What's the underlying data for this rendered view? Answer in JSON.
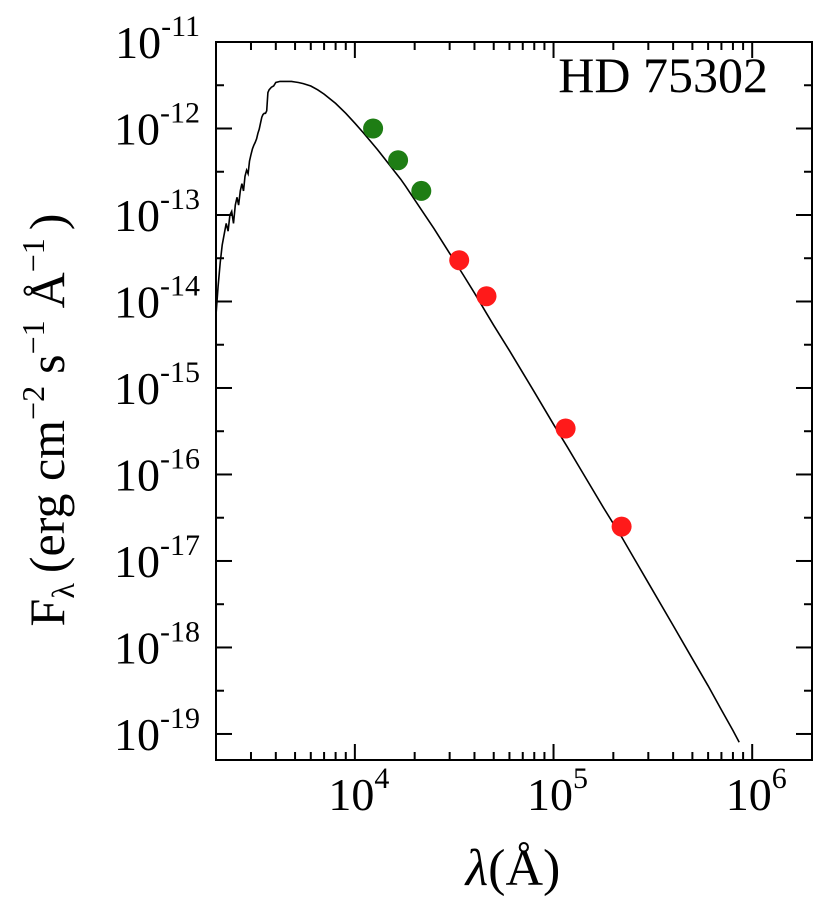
{
  "chart_data": {
    "type": "scatter",
    "title": "",
    "annotation": "HD 75302",
    "xlabel": "λ(Å)",
    "ylabel": "F_λ (erg cm^−2 s^−1 Å^−1)",
    "ylabel_parts": {
      "f": "F",
      "lambda": "λ",
      "open": "(erg cm",
      "exp2": "−2",
      "s": "s",
      "exp1": "−1",
      "angstrom": "Å",
      "exp3": "−1",
      "close": ")"
    },
    "x_scale": "log",
    "y_scale": "log",
    "xlim": [
      2000,
      2000000
    ],
    "ylim": [
      5e-20,
      1e-11
    ],
    "x_ticks": [
      {
        "value": 10000,
        "base": "10",
        "exp": "4"
      },
      {
        "value": 100000,
        "base": "10",
        "exp": "5"
      },
      {
        "value": 1000000,
        "base": "10",
        "exp": "6"
      }
    ],
    "y_ticks": [
      {
        "value": 1e-11,
        "base": "10",
        "exp": "-11"
      },
      {
        "value": 1e-12,
        "base": "10",
        "exp": "-12"
      },
      {
        "value": 1e-13,
        "base": "10",
        "exp": "-13"
      },
      {
        "value": 1e-14,
        "base": "10",
        "exp": "-14"
      },
      {
        "value": 1e-15,
        "base": "10",
        "exp": "-15"
      },
      {
        "value": 1e-16,
        "base": "10",
        "exp": "-16"
      },
      {
        "value": 1e-17,
        "base": "10",
        "exp": "-17"
      },
      {
        "value": 1e-18,
        "base": "10",
        "exp": "-18"
      },
      {
        "value": 1e-19,
        "base": "10",
        "exp": "-19"
      }
    ],
    "series": [
      {
        "kind": "line",
        "color": "#000000",
        "points": [
          [
            2000,
            7e-15
          ],
          [
            2050,
            1.5e-14
          ],
          [
            2100,
            2.8e-14
          ],
          [
            2150,
            4.5e-14
          ],
          [
            2200,
            6e-14
          ],
          [
            2250,
            8e-14
          ],
          [
            2300,
            6.5e-14
          ],
          [
            2350,
            1e-13
          ],
          [
            2400,
            1.1e-13
          ],
          [
            2450,
            8e-14
          ],
          [
            2500,
            1.3e-13
          ],
          [
            2550,
            1.6e-13
          ],
          [
            2600,
            1.3e-13
          ],
          [
            2650,
            1.9e-13
          ],
          [
            2700,
            2.3e-13
          ],
          [
            2750,
            1.9e-13
          ],
          [
            2800,
            2.8e-13
          ],
          [
            2850,
            3.3e-13
          ],
          [
            2900,
            3e-13
          ],
          [
            2950,
            4.2e-13
          ],
          [
            3000,
            5e-13
          ],
          [
            3050,
            5.8e-13
          ],
          [
            3100,
            6.4e-13
          ],
          [
            3150,
            6.9e-13
          ],
          [
            3200,
            7.6e-13
          ],
          [
            3250,
            8.8e-13
          ],
          [
            3300,
            9.8e-13
          ],
          [
            3350,
            1.15e-12
          ],
          [
            3400,
            1.35e-12
          ],
          [
            3450,
            1.45e-12
          ],
          [
            3500,
            1.5e-12
          ],
          [
            3550,
            1.5e-12
          ],
          [
            3600,
            1.6e-12
          ],
          [
            3650,
            2.6e-12
          ],
          [
            3700,
            2.8e-12
          ],
          [
            3800,
            3e-12
          ],
          [
            3900,
            3.1e-12
          ],
          [
            4000,
            3.4e-12
          ],
          [
            4200,
            3.5e-12
          ],
          [
            4400,
            3.5e-12
          ],
          [
            4600,
            3.5e-12
          ],
          [
            4800,
            3.5e-12
          ],
          [
            5000,
            3.45e-12
          ],
          [
            5200,
            3.4e-12
          ],
          [
            5500,
            3.3e-12
          ],
          [
            6000,
            3.1e-12
          ],
          [
            6500,
            2.8e-12
          ],
          [
            7000,
            2.5e-12
          ],
          [
            7500,
            2.2e-12
          ],
          [
            8000,
            1.95e-12
          ],
          [
            9000,
            1.5e-12
          ],
          [
            10000,
            1.15e-12
          ],
          [
            11000,
            9e-13
          ],
          [
            12000,
            7.1e-13
          ],
          [
            13000,
            5.7e-13
          ],
          [
            14000,
            4.6e-13
          ],
          [
            15000,
            3.75e-13
          ],
          [
            16000,
            3.1e-13
          ],
          [
            17000,
            2.6e-13
          ],
          [
            18000,
            2.15e-13
          ],
          [
            20000,
            1.5e-13
          ],
          [
            22000,
            1.08e-13
          ],
          [
            25000,
            7e-14
          ],
          [
            30000,
            3.6e-14
          ],
          [
            35000,
            2.05e-14
          ],
          [
            40000,
            1.25e-14
          ],
          [
            46000,
            7.3e-15
          ],
          [
            50000,
            5.3e-15
          ],
          [
            60000,
            2.7e-15
          ],
          [
            70000,
            1.5e-15
          ],
          [
            80000,
            9e-16
          ],
          [
            100000,
            3.8e-16
          ],
          [
            117000,
            2.1e-16
          ],
          [
            140000,
            1.05e-16
          ],
          [
            180000,
            4e-17
          ],
          [
            220000,
            1.9e-17
          ],
          [
            300000,
            5.6e-18
          ],
          [
            400000,
            1.8e-18
          ],
          [
            500000,
            7.4e-19
          ],
          [
            600000,
            3.6e-19
          ],
          [
            700000,
            1.9e-19
          ],
          [
            800000,
            1.1e-19
          ],
          [
            860000,
            8e-20
          ]
        ]
      },
      {
        "kind": "scatter",
        "color": "#1e7d14",
        "points": [
          [
            12350,
            1e-12
          ],
          [
            16500,
            4.3e-13
          ],
          [
            21600,
            1.9e-13
          ]
        ]
      },
      {
        "kind": "scatter",
        "color": "#ff1a1a",
        "points": [
          [
            33500,
            3e-14
          ],
          [
            46000,
            1.15e-14
          ],
          [
            115000,
            3.4e-16
          ],
          [
            220000,
            2.5e-17
          ]
        ]
      }
    ]
  }
}
